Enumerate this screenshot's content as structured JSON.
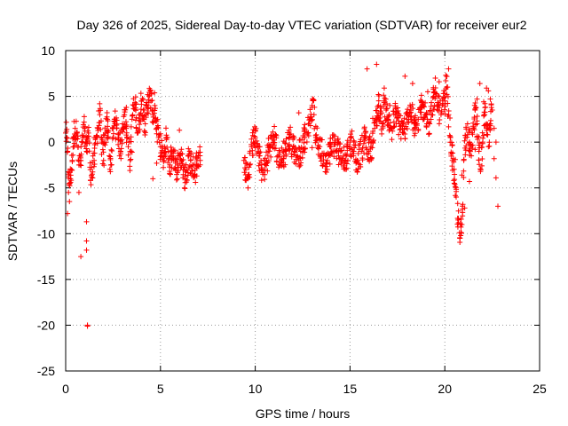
{
  "chart_data": {
    "type": "scatter",
    "title": "Day 326 of 2025, Sidereal Day-to-day VTEC variation (SDTVAR) for receiver eur2",
    "xlabel": "GPS time / hours",
    "ylabel": "SDTVAR / TECUs",
    "xlim": [
      0,
      25
    ],
    "ylim": [
      -25,
      10
    ],
    "xticks": [
      0,
      5,
      10,
      15,
      20,
      25
    ],
    "yticks": [
      -25,
      -20,
      -15,
      -10,
      -5,
      0,
      5,
      10
    ],
    "grid": true,
    "marker": "+",
    "color": "#ff0000",
    "series": [
      {
        "name": "SDTVAR",
        "x": [
          0.0,
          0.05,
          0.1,
          0.15,
          0.2,
          0.25,
          0.3,
          0.35,
          0.4,
          0.5,
          0.6,
          0.7,
          0.8,
          0.9,
          1.0,
          1.05,
          1.1,
          1.15,
          1.2,
          1.3,
          1.4,
          1.5,
          1.6,
          1.7,
          1.8,
          1.9,
          2.0,
          2.1,
          2.2,
          2.3,
          2.4,
          2.5,
          2.6,
          2.7,
          2.8,
          2.9,
          3.0,
          3.1,
          3.2,
          3.3,
          3.4,
          3.5,
          3.6,
          3.7,
          3.8,
          3.9,
          4.0,
          4.1,
          4.2,
          4.3,
          4.4,
          4.5,
          4.6,
          4.7,
          4.8,
          4.9,
          5.0,
          5.1,
          5.2,
          5.3,
          5.4,
          5.5,
          5.6,
          5.7,
          5.8,
          5.9,
          6.0,
          6.1,
          6.2,
          6.3,
          6.4,
          6.5,
          6.6,
          6.7,
          6.8,
          6.9,
          7.0,
          7.1,
          9.4,
          9.5,
          9.6,
          9.7,
          9.8,
          9.9,
          10.0,
          10.2,
          10.4,
          10.6,
          10.8,
          11.0,
          11.2,
          11.4,
          11.6,
          11.8,
          12.0,
          12.2,
          12.4,
          12.6,
          12.8,
          12.9,
          13.0,
          13.1,
          13.2,
          13.4,
          13.6,
          13.8,
          14.0,
          14.2,
          14.4,
          14.6,
          14.8,
          15.0,
          15.2,
          15.4,
          15.6,
          15.8,
          16.0,
          16.1,
          16.2,
          16.3,
          16.4,
          16.5,
          16.6,
          16.7,
          16.8,
          16.9,
          17.0,
          17.2,
          17.4,
          17.6,
          17.8,
          18.0,
          18.2,
          18.4,
          18.6,
          18.8,
          19.0,
          19.2,
          19.4,
          19.6,
          19.8,
          20.0,
          20.1,
          20.2,
          20.3,
          20.4,
          20.5,
          20.6,
          20.7,
          20.8,
          20.9,
          21.0,
          21.1,
          21.2,
          21.3,
          21.4,
          21.5,
          21.6,
          21.7,
          21.8,
          21.9,
          22.0,
          22.1,
          22.2,
          22.3,
          22.4,
          22.5,
          22.6,
          22.7,
          22.8,
          0.1,
          0.15,
          0.2,
          0.7,
          0.8,
          1.1,
          1.1,
          1.15,
          1.15,
          1.1,
          1.1,
          1.5,
          2.0,
          2.6,
          3.2,
          3.9,
          4.3,
          4.8,
          5.6,
          6.3,
          6.9,
          10.1,
          10.7,
          11.5,
          12.3,
          13.0,
          13.0,
          14.3,
          15.1,
          15.9,
          16.4,
          16.5,
          17.1,
          17.9,
          18.3,
          18.8,
          19.1,
          19.5,
          20.05,
          20.2,
          20.4,
          20.55,
          20.9,
          20.95,
          21.05,
          21.3,
          21.6,
          21.85,
          22.05,
          22.2,
          22.4,
          22.6,
          22.7,
          2.2,
          3.5,
          4.6,
          6.0,
          11.0,
          12.6,
          14.6,
          16.2,
          19.7,
          21.7,
          22.3
        ],
        "y": [
          1.0,
          0.5,
          -1.0,
          -3.5,
          -4.5,
          -4.0,
          -3.0,
          -2.0,
          0.5,
          1.5,
          1.0,
          -2.5,
          -2.0,
          0.5,
          1.5,
          0.0,
          -1.0,
          0.5,
          1.0,
          -3.0,
          -3.5,
          -2.0,
          0.5,
          1.5,
          3.0,
          0.0,
          -2.0,
          1.0,
          2.5,
          -1.5,
          -2.5,
          1.5,
          2.0,
          1.5,
          0.5,
          -1.0,
          2.0,
          3.0,
          1.5,
          -0.5,
          -2.0,
          2.5,
          4.0,
          3.5,
          1.0,
          3.0,
          4.5,
          3.5,
          2.0,
          4.0,
          5.0,
          4.5,
          3.0,
          4.0,
          1.5,
          0.5,
          -0.5,
          -1.5,
          -2.0,
          0.5,
          -1.0,
          -2.5,
          -1.5,
          -1.0,
          -3.0,
          -2.5,
          -1.5,
          -2.0,
          -3.0,
          -4.0,
          -3.0,
          -1.5,
          -2.0,
          -2.5,
          -3.5,
          -2.5,
          -1.5,
          -2.0,
          -2.0,
          -3.0,
          -4.0,
          -2.5,
          -0.5,
          0.0,
          0.5,
          -1.5,
          -3.5,
          -2.0,
          -0.5,
          0.5,
          -1.5,
          -2.0,
          -1.0,
          0.5,
          -0.5,
          -1.5,
          -1.0,
          0.5,
          2.0,
          2.5,
          4.0,
          3.0,
          0.5,
          -0.5,
          -1.5,
          -2.0,
          -0.5,
          0.0,
          -1.0,
          -2.0,
          -1.5,
          0.0,
          -1.0,
          -2.0,
          -1.0,
          0.5,
          -1.0,
          -0.5,
          0.0,
          1.5,
          2.5,
          4.0,
          3.0,
          2.0,
          4.5,
          3.5,
          2.5,
          1.5,
          3.0,
          2.0,
          1.0,
          2.5,
          3.5,
          1.5,
          2.5,
          4.0,
          3.0,
          2.0,
          5.0,
          4.0,
          3.0,
          4.5,
          6.0,
          3.0,
          0.5,
          -2.0,
          -4.5,
          -6.0,
          -8.5,
          -10.5,
          -9.0,
          -2.0,
          0.5,
          2.0,
          0.0,
          -1.5,
          1.5,
          3.5,
          2.0,
          -1.0,
          -3.0,
          0.0,
          3.0,
          1.5,
          -0.5,
          2.0,
          3.5,
          1.5,
          0.0,
          -7.0,
          -7.8,
          -5.5,
          -6.5,
          -5.5,
          -12.5,
          -10.8,
          -8.7,
          -20.0,
          -20.1,
          -11.8,
          0.3,
          0.5,
          0.8,
          2.2,
          3.8,
          1.4,
          3.2,
          -2.3,
          -2.8,
          -3.1,
          -1.2,
          -0.2,
          0.4,
          0.1,
          3.2,
          3.8,
          -0.6,
          -0.9,
          1.2,
          8.0,
          8.5,
          5.2,
          4.0,
          7.2,
          6.4,
          3.8,
          5.5,
          7.0,
          7.3,
          8.0,
          -0.3,
          -1.9,
          -3.6,
          -6.8,
          -7.2,
          -4.3,
          -0.8,
          6.4,
          4.4,
          5.9,
          4.7,
          -1.8,
          -3.9,
          0.5,
          -1.1,
          -4.0,
          1.3,
          -0.3,
          -1.1,
          -1.8,
          2.6,
          6.6,
          4.7,
          5.6
        ]
      }
    ]
  }
}
